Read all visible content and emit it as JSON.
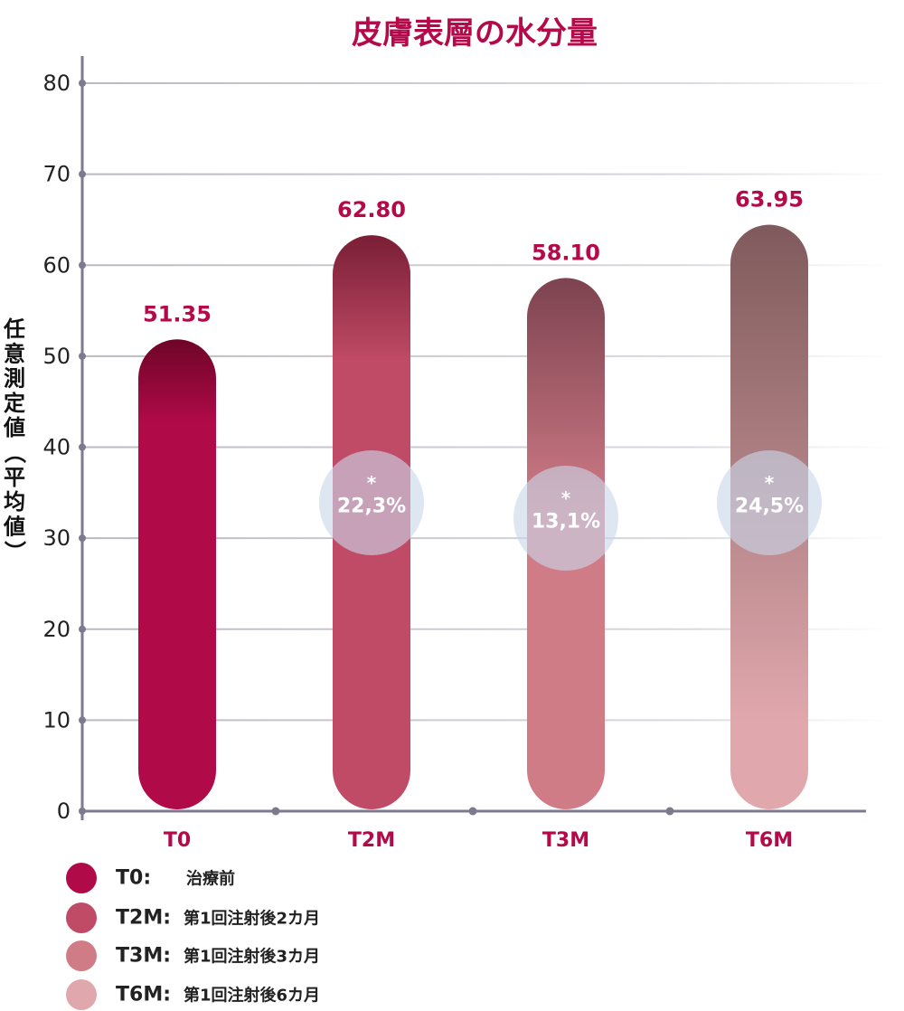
{
  "chart_data": {
    "type": "bar",
    "title": "皮膚表層の水分量",
    "ylabel": "任意測定値（平均値）",
    "ylim": [
      0,
      80
    ],
    "yticks": [
      "0",
      "10",
      "20",
      "30",
      "40",
      "50",
      "60",
      "70",
      "80"
    ],
    "categories": [
      "T0",
      "T2M",
      "T3M",
      "T6M"
    ],
    "values": [
      51.35,
      62.8,
      58.1,
      63.95
    ],
    "value_labels": [
      "51.35",
      "62.80",
      "58.10",
      "63.95"
    ],
    "increase_labels": [
      "",
      "22,3%",
      "13,1%",
      "24,5%"
    ],
    "significance_marker": "*",
    "legend": [
      {
        "key": "T0:",
        "desc": "治療前"
      },
      {
        "key": "T2M:",
        "desc": "第1回注射後2カ月"
      },
      {
        "key": "T3M:",
        "desc": "第1回注射後3カ月"
      },
      {
        "key": "T6M:",
        "desc": "第1回注射後6カ月"
      }
    ],
    "legend_position": "bottom-left",
    "grid": true,
    "colors": {
      "title": "#b50a4a",
      "value_label": "#b50a4a",
      "bars": [
        "#b10a48",
        "#c04b66",
        "#d07c87",
        "#e0a8ad"
      ],
      "bar_tops": [
        "#6e0527",
        "#7a1e36",
        "#7d4350",
        "#7f5a5c"
      ],
      "axis": "#7d7a90",
      "bubble": "#c9d6ea"
    }
  }
}
